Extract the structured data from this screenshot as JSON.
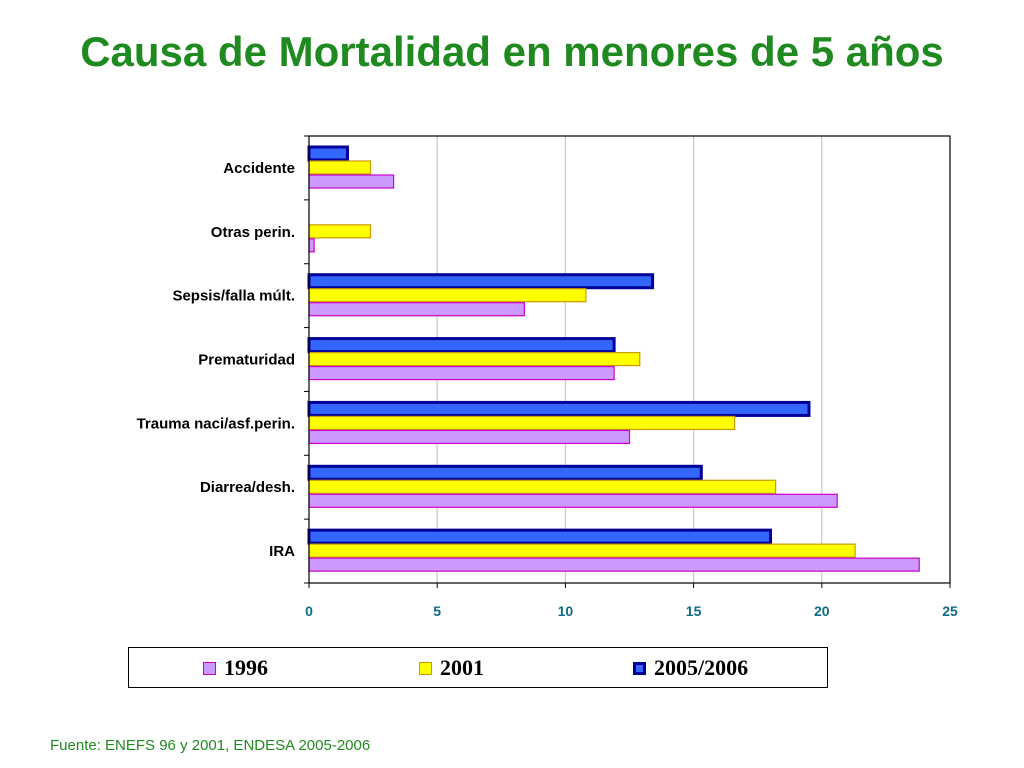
{
  "slide": {
    "title": "Causa de Mortalidad en menores de 5 años",
    "source": "Fuente: ENEFS 96 y 2001, ENDESA 2005-2006"
  },
  "chart_data": {
    "type": "bar",
    "orientation": "horizontal",
    "categories": [
      "Accidente",
      "Otras perin.",
      "Sepsis/falla múlt.",
      "Prematuridad",
      "Trauma naci/asf.perin.",
      "Diarrea/desh.",
      "IRA"
    ],
    "series": [
      {
        "name": "1996",
        "color": "#cc99ff",
        "edge": "#cc00cc",
        "values": [
          3.3,
          0.2,
          8.4,
          11.9,
          12.5,
          20.6,
          23.8
        ]
      },
      {
        "name": "2001",
        "color": "#ffff00",
        "edge": "#cc9900",
        "values": [
          2.4,
          2.4,
          10.8,
          12.9,
          16.6,
          18.2,
          21.3
        ]
      },
      {
        "name": "2005/2006",
        "color": "#3366ff",
        "edge": "#000099",
        "values": [
          1.5,
          null,
          13.4,
          11.9,
          19.5,
          15.3,
          18.0
        ]
      }
    ],
    "xlim": [
      0,
      25
    ],
    "xticks": [
      0,
      5,
      10,
      15,
      20,
      25
    ],
    "grid": true,
    "legend_position": "bottom"
  }
}
